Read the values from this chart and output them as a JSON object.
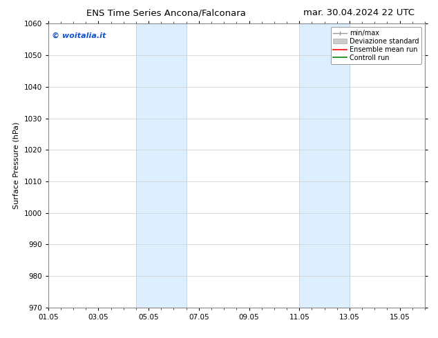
{
  "title_left": "ENS Time Series Ancona/Falconara",
  "title_right": "mar. 30.04.2024 22 UTC",
  "ylabel": "Surface Pressure (hPa)",
  "ylim": [
    970,
    1060
  ],
  "yticks": [
    970,
    980,
    990,
    1000,
    1010,
    1020,
    1030,
    1040,
    1050,
    1060
  ],
  "xlim": [
    0,
    15
  ],
  "xtick_labels": [
    "01.05",
    "03.05",
    "05.05",
    "07.05",
    "09.05",
    "11.05",
    "13.05",
    "15.05"
  ],
  "xtick_positions": [
    0,
    2,
    4,
    6,
    8,
    10,
    12,
    14
  ],
  "shaded_bands": [
    {
      "x_start": 3.5,
      "x_end": 5.5
    },
    {
      "x_start": 10.0,
      "x_end": 12.0
    }
  ],
  "shaded_color": "#ddeeff",
  "shaded_edge_color": "#b8d0eb",
  "watermark_text": "© woitalia.it",
  "watermark_color": "#1155cc",
  "legend_items": [
    {
      "label": "min/max",
      "color": "#aaaaaa",
      "lw": 1.0
    },
    {
      "label": "Deviazione standard",
      "color": "#cccccc",
      "lw": 5
    },
    {
      "label": "Ensemble mean run",
      "color": "red",
      "lw": 1.2
    },
    {
      "label": "Controll run",
      "color": "green",
      "lw": 1.2
    }
  ],
  "bg_color": "#ffffff",
  "grid_color": "#cccccc",
  "title_fontsize": 9.5,
  "label_fontsize": 8,
  "tick_fontsize": 7.5,
  "legend_fontsize": 7
}
